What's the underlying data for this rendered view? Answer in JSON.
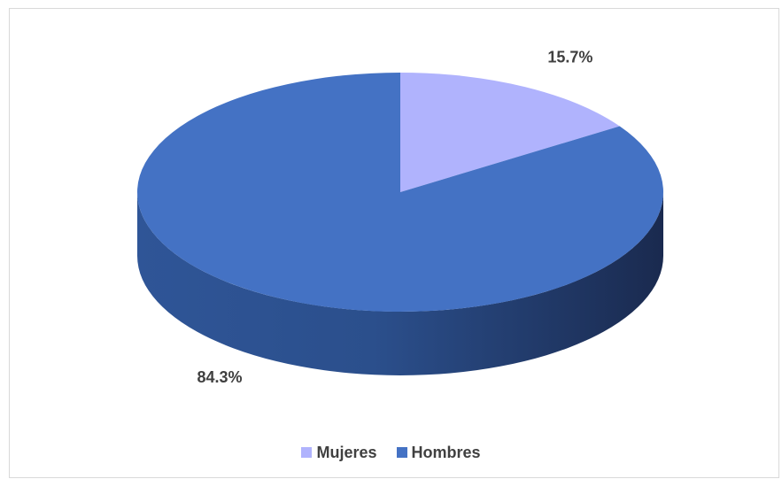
{
  "chart_data": {
    "type": "pie",
    "style": "3d",
    "categories": [
      "Mujeres",
      "Hombres"
    ],
    "values": [
      15.7,
      84.3
    ],
    "data_labels": [
      "15.7%",
      "84.3%"
    ],
    "colors": [
      "#b0b3fd",
      "#4472c4"
    ],
    "legend_position": "bottom",
    "title": ""
  }
}
